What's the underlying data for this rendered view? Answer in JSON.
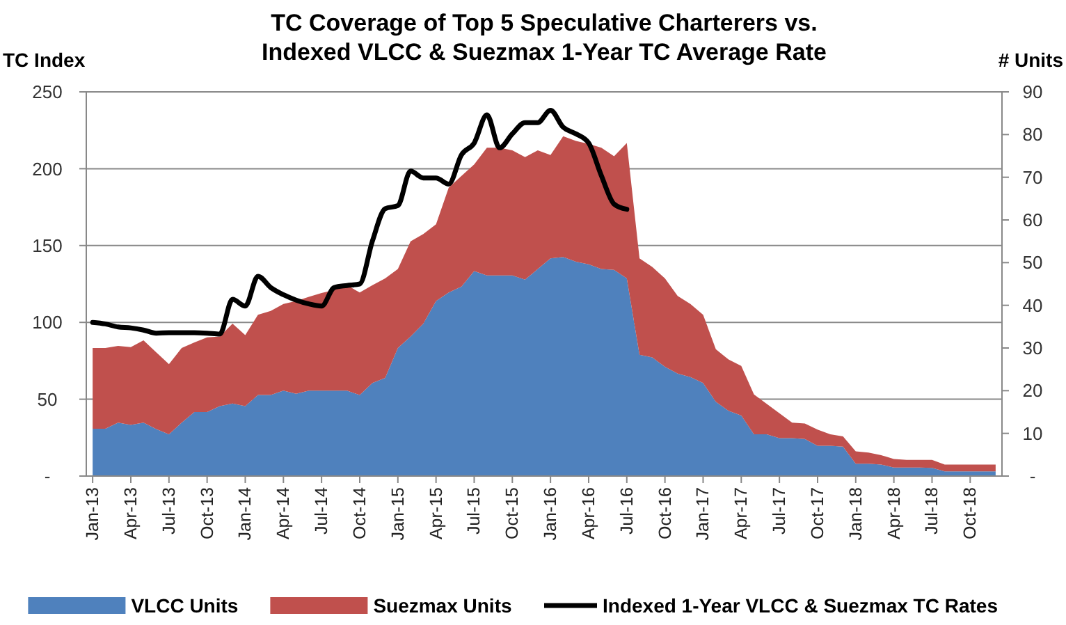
{
  "chart_data": {
    "type": "area",
    "title": "TC Coverage of Top 5 Speculative Charterers vs. Indexed VLCC & Suezmax 1-Year TC Average Rate",
    "ylabel": "TC Index",
    "y2label": "# Units",
    "categories": [
      "Jan-13",
      null,
      null,
      "Apr-13",
      null,
      null,
      "Jul-13",
      null,
      null,
      "Oct-13",
      null,
      null,
      "Jan-14",
      null,
      null,
      "Apr-14",
      null,
      null,
      "Jul-14",
      null,
      null,
      "Oct-14",
      null,
      null,
      "Jan-15",
      null,
      null,
      "Apr-15",
      null,
      null,
      "Jul-15",
      null,
      null,
      "Oct-15",
      null,
      null,
      "Jan-16",
      null,
      null,
      "Apr-16",
      null,
      null,
      "Jul-16",
      null,
      null,
      "Oct-16",
      null,
      null,
      "Jan-17",
      null,
      null,
      "Apr-17",
      null,
      null,
      "Jul-17",
      null,
      null,
      "Oct-17",
      null,
      null,
      "Jan-18",
      null,
      null,
      "Apr-18",
      null,
      null,
      "Jul-18",
      null,
      null,
      "Oct-18",
      null,
      null
    ],
    "stacked": true,
    "series": [
      {
        "name": "VLCC Units",
        "color": "#4f81bd",
        "axis": "y2",
        "values": [
          11.1,
          11.1,
          12.5,
          12,
          12.5,
          11,
          9.8,
          12.5,
          15,
          15,
          16.4,
          17,
          16.4,
          19,
          19,
          20,
          19.3,
          20,
          20,
          20,
          20,
          19,
          21.8,
          23,
          30,
          32.7,
          35.7,
          41,
          43,
          44.4,
          48,
          47,
          47,
          47,
          46,
          48.5,
          51,
          51.3,
          50.2,
          49.6,
          48.5,
          48.3,
          46.3,
          28.4,
          27.8,
          25.6,
          24,
          23.2,
          21.8,
          17.4,
          15.3,
          14.2,
          9.8,
          9.8,
          8.9,
          8.9,
          8.7,
          7.1,
          7.1,
          6.9,
          2.9,
          2.9,
          2.7,
          2,
          2,
          2,
          1.9,
          1.1,
          1.1,
          1.1,
          1.1,
          1.1
        ]
      },
      {
        "name": "Suezmax Units",
        "color": "#c0504d",
        "axis": "y2",
        "values": [
          18.9,
          18.9,
          18,
          18.2,
          19.3,
          18,
          16.4,
          17.5,
          16.3,
          17.5,
          16.3,
          18.7,
          16.6,
          18.8,
          19.7,
          20.3,
          21.7,
          22,
          22.9,
          23.6,
          24.7,
          24,
          22.9,
          23.3,
          18.5,
          22.3,
          21,
          18,
          24.6,
          25.9,
          25,
          29.9,
          29.9,
          29.3,
          28.7,
          27.8,
          24.2,
          28.3,
          28.3,
          28.2,
          28.4,
          26.6,
          31.7,
          22.6,
          21.2,
          20.7,
          18.2,
          17.1,
          16,
          12.3,
          12,
          11.6,
          9.3,
          7.1,
          5.8,
          3.6,
          3.6,
          3.8,
          2.7,
          2.4,
          2.9,
          2.6,
          2.2,
          2,
          1.8,
          1.8,
          1.9,
          1.6,
          1.6,
          1.6,
          1.6,
          1.6
        ]
      },
      {
        "name": "Indexed 1-Year VLCC & Suezmax TC Rates",
        "type": "line",
        "color": "#000000",
        "axis": "y",
        "values": [
          100,
          99,
          97,
          96.4,
          95,
          93,
          93.3,
          93.3,
          93.3,
          93,
          92.4,
          115,
          110.6,
          130,
          122.7,
          118,
          114.5,
          112,
          110.6,
          122.7,
          124,
          125,
          153,
          174,
          176,
          198.5,
          194,
          194,
          190,
          209,
          216.7,
          235,
          213.6,
          222.7,
          230,
          230,
          238,
          227,
          222.7,
          216.7,
          195.5,
          177,
          173.6,
          null,
          null,
          null,
          null,
          null,
          null,
          null,
          null,
          null,
          null,
          null,
          null,
          null,
          null,
          null,
          null,
          null,
          null,
          null,
          null,
          null,
          null,
          null,
          null,
          null,
          null,
          null,
          null,
          null
        ]
      }
    ],
    "ylim": [
      0,
      250
    ],
    "yticks": [
      {
        "value": 0,
        "label": "-"
      },
      50,
      100,
      150,
      200,
      250
    ],
    "y2lim": [
      0,
      90
    ],
    "y2ticks": [
      {
        "value": 0,
        "label": "-"
      },
      10,
      20,
      30,
      40,
      50,
      60,
      70,
      80,
      90
    ],
    "grid": "y",
    "legend": "bottom",
    "line_style": "solid",
    "marker": "none"
  }
}
